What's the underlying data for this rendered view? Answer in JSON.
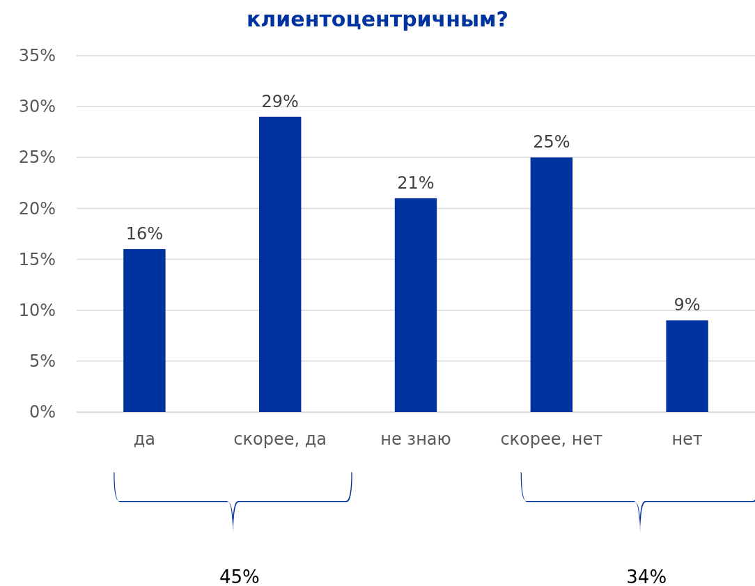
{
  "chart_data": {
    "type": "bar",
    "title": "клиентоцентричным?",
    "categories": [
      "да",
      "скорее, да",
      "не знаю",
      "скорее, нет",
      "нет"
    ],
    "values": [
      16,
      29,
      21,
      25,
      9
    ],
    "color": "#0033a0",
    "ylim": [
      0,
      35
    ],
    "yticks": [
      {
        "value": 0,
        "label": "0%"
      },
      {
        "value": 5,
        "label": "5%"
      },
      {
        "value": 10,
        "label": "10%"
      },
      {
        "value": 15,
        "label": "15%"
      },
      {
        "value": 20,
        "label": "20%"
      },
      {
        "value": 25,
        "label": "25%"
      },
      {
        "value": 30,
        "label": "30%"
      },
      {
        "value": 35,
        "label": "35%"
      }
    ],
    "grid": "y",
    "value_labels": [
      "16%",
      "29%",
      "21%",
      "25%",
      "9%"
    ],
    "annotations": [
      "45%",
      "34%"
    ]
  }
}
